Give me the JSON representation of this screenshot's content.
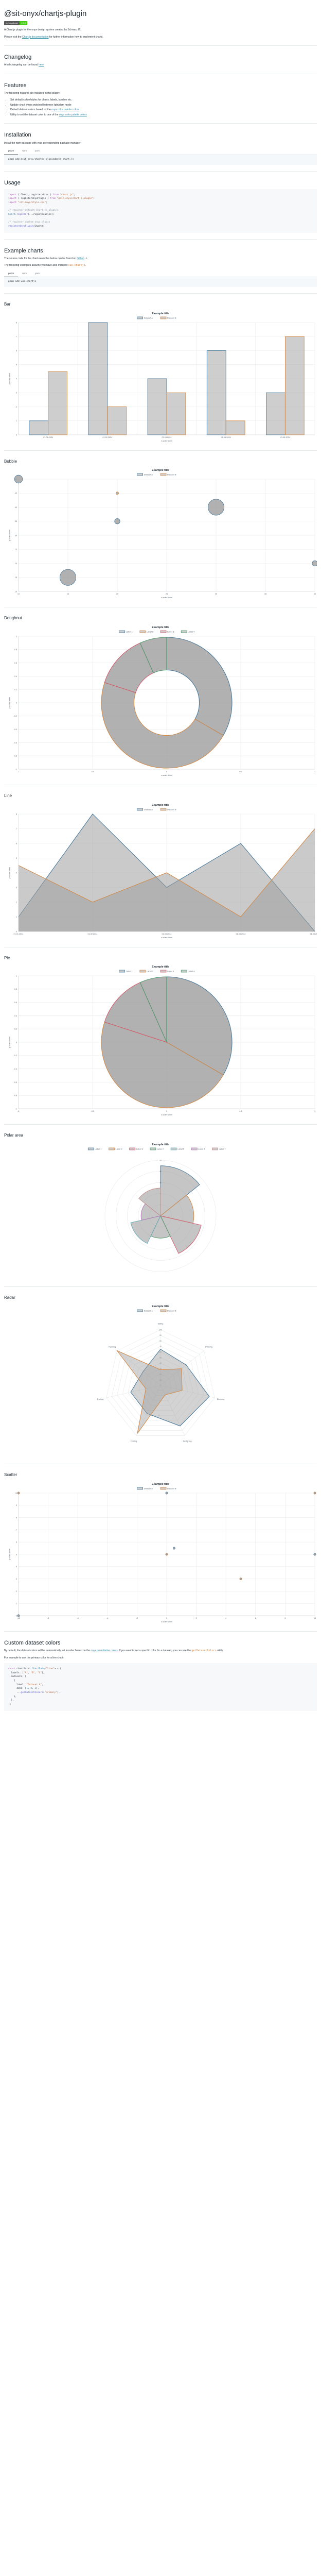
{
  "title": "@sit-onyx/chartjs-plugin",
  "badge": {
    "label": "npm package",
    "version": "1.0.0"
  },
  "intro": {
    "text": "A Chart.js plugin for the onyx design system created by Schwarz IT.",
    "pre": "Please visit the ",
    "link": "Chart.js documentation",
    "post": " for further information how to implement charts."
  },
  "changelog": {
    "heading": "Changelog",
    "pre": "A full changelog can be found ",
    "link": "here"
  },
  "features": {
    "heading": "Features",
    "intro": "The following features are included in this plugin:",
    "items": [
      {
        "text": "Set default colors/styles for charts, labels, borders etc."
      },
      {
        "text": "Update chart when switched between light/dark mode"
      },
      {
        "text": "Default dataset colors based on the ",
        "link": "onyx color palette colors"
      },
      {
        "text": "Utility to set the dataset color to one of the ",
        "link": "onyx color palette colors"
      }
    ]
  },
  "installation": {
    "heading": "Installation",
    "text": "Install the npm package with your corresponding package manager:",
    "tabs": [
      "pnpm",
      "npm",
      "yarn"
    ],
    "command": "pnpm add @sit-onyx/chartjs-plugin@beta chart.js"
  },
  "usage": {
    "heading": "Usage",
    "lines": [
      [
        {
          "c": "kw",
          "t": "import"
        },
        {
          "c": "",
          "t": " { Chart, registerables } "
        },
        {
          "c": "kw",
          "t": "from"
        },
        {
          "c": "str",
          "t": " \"chart.js\""
        },
        {
          "c": "",
          "t": ";"
        }
      ],
      [
        {
          "c": "kw",
          "t": "import"
        },
        {
          "c": "",
          "t": " { registerOnyxPlugin } "
        },
        {
          "c": "kw",
          "t": "from"
        },
        {
          "c": "str",
          "t": " \"@sit-onyx/chartjs-plugin\""
        },
        {
          "c": "",
          "t": ";"
        }
      ],
      [
        {
          "c": "kw",
          "t": "import"
        },
        {
          "c": "str",
          "t": " \"sit-onyx/style.css\""
        },
        {
          "c": "",
          "t": ";"
        }
      ],
      [],
      [
        {
          "c": "cm",
          "t": "// register default Chart.js plugins"
        }
      ],
      [
        {
          "c": "var",
          "t": "Chart"
        },
        {
          "c": "",
          "t": "."
        },
        {
          "c": "fn",
          "t": "register"
        },
        {
          "c": "",
          "t": "(...registerables);"
        }
      ],
      [],
      [
        {
          "c": "cm",
          "t": "// register custom onyx plugin"
        }
      ],
      [
        {
          "c": "fn",
          "t": "registerOnyxPlugin"
        },
        {
          "c": "",
          "t": "(Chart);"
        }
      ]
    ]
  },
  "examples": {
    "heading": "Example charts",
    "text1_pre": "The source code for the chart examples below can be found on ",
    "text1_link": "Github",
    "text1_post": " ↗.",
    "text2_pre": "The following examples assume you have also installed ",
    "text2_code": "vue-chartjs",
    "text2_post": ".",
    "tabs": [
      "pnpm",
      "npm",
      "yarn"
    ],
    "command": "pnpm add vue-chartjs"
  },
  "colors": {
    "onyx1": "#4a7a9c",
    "onyx2": "#d28a48",
    "onyx3": "#d35a6e",
    "onyx4": "#4f9a6e",
    "onyx5": "#6aaab8",
    "onyx6": "#b27ab8",
    "onyx7": "#c49090",
    "gray_fill": "#9e9e9e"
  },
  "chart_data": [
    {
      "id": "bar",
      "section": "Bar",
      "type": "bar",
      "title": "Example title",
      "xlabel": "x-scale label",
      "ylabel": "y-scale label",
      "categories": [
        "01.01.2024",
        "01.02.2024",
        "01.03.2024",
        "01.04.2024",
        "01.05.2024"
      ],
      "series": [
        {
          "name": "Dataset A",
          "values": [
            1,
            8,
            4,
            6,
            3
          ]
        },
        {
          "name": "Dataset B",
          "values": [
            4.5,
            2,
            3,
            1,
            7
          ]
        }
      ],
      "ylim": [
        0,
        8
      ],
      "yticks": [
        0,
        1,
        2,
        3,
        4,
        5,
        6,
        7,
        8
      ],
      "legend": "top",
      "grid": true
    },
    {
      "id": "bubble",
      "section": "Bubble",
      "type": "bubble",
      "title": "Example title",
      "xlabel": "x-scale label",
      "ylabel": "y-scale label",
      "series": [
        {
          "name": "Dataset A",
          "points": [
            {
              "x": 10,
              "y": 50,
              "r": 3
            },
            {
              "x": 15,
              "y": 15,
              "r": 6
            },
            {
              "x": 20,
              "y": 35,
              "r": 2
            },
            {
              "x": 30,
              "y": 40,
              "r": 6
            },
            {
              "x": 40,
              "y": 20,
              "r": 2
            }
          ]
        },
        {
          "name": "Dataset B",
          "points": [
            {
              "x": 20,
              "y": 45,
              "r": 1
            }
          ]
        }
      ],
      "xlim": [
        10,
        40
      ],
      "xticks": [
        10,
        15,
        20,
        25,
        30,
        35,
        40
      ],
      "ylim": [
        10,
        50
      ],
      "yticks": [
        10,
        15,
        20,
        25,
        30,
        35,
        40,
        45,
        50
      ],
      "legend": "top",
      "grid": true
    },
    {
      "id": "doughnut",
      "section": "Doughnut",
      "type": "doughnut",
      "title": "Example title",
      "xlabel": "x-scale label",
      "ylabel": "y-scale label",
      "labels": [
        "Label 1",
        "Label 2",
        "Label 3",
        "Label 4"
      ],
      "values": [
        25,
        35,
        10,
        5
      ],
      "xlim": [
        -1,
        1
      ],
      "xticks": [
        -1,
        -0.5,
        0,
        0.5,
        1
      ],
      "ylim": [
        -1,
        1
      ],
      "yticks": [
        -1,
        -0.8,
        -0.6,
        -0.4,
        -0.2,
        0,
        0.2,
        0.4,
        0.6,
        0.8,
        1
      ],
      "legend": "top"
    },
    {
      "id": "line",
      "section": "Line",
      "type": "area",
      "title": "Example title",
      "xlabel": "x-scale label",
      "ylabel": "y-scale label",
      "categories": [
        "01.01.2024",
        "01.02.2024",
        "01.03.2024",
        "01.04.2024",
        "01.05.2024"
      ],
      "series": [
        {
          "name": "Dataset A",
          "values": [
            1,
            8,
            3,
            6,
            0
          ]
        },
        {
          "name": "Dataset B",
          "values": [
            4.5,
            2,
            4,
            1,
            7
          ]
        }
      ],
      "ylim": [
        0,
        8
      ],
      "yticks": [
        0,
        1,
        2,
        3,
        4,
        5,
        6,
        7,
        8
      ],
      "legend": "top",
      "grid": true
    },
    {
      "id": "pie",
      "section": "Pie",
      "type": "pie",
      "title": "Example title",
      "xlabel": "x-scale label",
      "ylabel": "y-scale label",
      "labels": [
        "Label 1",
        "Label 2",
        "Label 3",
        "Label 4"
      ],
      "values": [
        25,
        35,
        10,
        5
      ],
      "xlim": [
        -1,
        1
      ],
      "xticks": [
        -1,
        -0.5,
        0,
        0.5,
        1
      ],
      "ylim": [
        -1,
        1
      ],
      "yticks": [
        -1,
        -0.8,
        -0.6,
        -0.4,
        -0.2,
        0,
        0.2,
        0.4,
        0.6,
        0.8,
        1
      ],
      "legend": "top"
    },
    {
      "id": "polar",
      "section": "Polar area",
      "type": "polar",
      "title": "Example title",
      "labels": [
        "Label 1",
        "Label 2",
        "Label 3",
        "Label 4",
        "Label 5",
        "Label 6",
        "Label 7"
      ],
      "values": [
        18,
        12,
        15,
        8,
        11,
        7,
        10
      ],
      "rmax": 20,
      "rticks": [
        0,
        4,
        8,
        12,
        16,
        20
      ],
      "legend": "top"
    },
    {
      "id": "radar",
      "section": "Radar",
      "type": "radar",
      "title": "Example title",
      "labels": [
        "Eating",
        "Drinking",
        "Sleeping",
        "Designing",
        "Coding",
        "Cycling",
        "Running"
      ],
      "series": [
        {
          "name": "Dataset A",
          "values": [
            65,
            59,
            90,
            81,
            56,
            55,
            40
          ]
        },
        {
          "name": "Dataset B",
          "values": [
            28,
            48,
            40,
            19,
            96,
            27,
            100
          ]
        }
      ],
      "rmax": 100,
      "rticks": [
        0,
        10,
        20,
        30,
        40,
        50,
        60,
        70,
        80,
        90,
        100
      ],
      "legend": "top"
    },
    {
      "id": "scatter",
      "section": "Scatter",
      "type": "scatter",
      "title": "Example title",
      "xlabel": "x-scale label",
      "ylabel": "y-scale label",
      "series": [
        {
          "name": "Dataset A",
          "points": [
            {
              "x": -10,
              "y": 0
            },
            {
              "x": 0,
              "y": 10
            },
            {
              "x": 10,
              "y": 5
            },
            {
              "x": 0.5,
              "y": 5.5
            }
          ]
        },
        {
          "name": "Dataset B",
          "points": [
            {
              "x": -10,
              "y": 10
            },
            {
              "x": 10,
              "y": 10
            },
            {
              "x": 0,
              "y": 5
            },
            {
              "x": 5,
              "y": 3
            }
          ]
        }
      ],
      "xlim": [
        -10,
        10
      ],
      "xticks": [
        -10,
        -8,
        -6,
        -4,
        -2,
        0,
        2,
        4,
        6,
        8,
        10
      ],
      "ylim": [
        0,
        10
      ],
      "yticks": [
        0,
        1,
        2,
        3,
        4,
        5,
        6,
        7,
        8,
        9,
        10
      ],
      "legend": "top",
      "grid": true
    }
  ],
  "custom": {
    "heading": "Custom dataset colors",
    "text1_pre": "By default, the dataset colors will be automatically set in order based on the ",
    "text1_link": "onyx quantitative colors",
    "text1_mid": ". If you want to set a specific color for a dataset, you can use the ",
    "text1_code": "getDatasetColors",
    "text1_post": " utility.",
    "text2": "For example to use the primary color for a line chart:",
    "lines": [
      [
        {
          "c": "kw",
          "t": "const"
        },
        {
          "c": "",
          "t": " chartData: "
        },
        {
          "c": "var",
          "t": "ChartData"
        },
        {
          "c": "",
          "t": "<"
        },
        {
          "c": "str",
          "t": "\"line\""
        },
        {
          "c": "",
          "t": "> = {"
        }
      ],
      [
        {
          "c": "",
          "t": "  labels: ["
        },
        {
          "c": "str",
          "t": "\"A\""
        },
        {
          "c": "",
          "t": ", "
        },
        {
          "c": "str",
          "t": "\"B\""
        },
        {
          "c": "",
          "t": ", "
        },
        {
          "c": "str",
          "t": "\"C\""
        },
        {
          "c": "",
          "t": "],"
        }
      ],
      [
        {
          "c": "",
          "t": "  datasets: ["
        }
      ],
      [
        {
          "c": "",
          "t": "    {"
        }
      ],
      [
        {
          "c": "",
          "t": "      label: "
        },
        {
          "c": "str",
          "t": "\"Dataset A\""
        },
        {
          "c": "",
          "t": ","
        }
      ],
      [
        {
          "c": "",
          "t": "      data: ["
        },
        {
          "c": "num",
          "t": "1"
        },
        {
          "c": "",
          "t": ", "
        },
        {
          "c": "num",
          "t": "2"
        },
        {
          "c": "",
          "t": ", "
        },
        {
          "c": "num",
          "t": "3"
        },
        {
          "c": "",
          "t": "],"
        }
      ],
      [
        {
          "c": "",
          "t": "      ..."
        },
        {
          "c": "fn",
          "t": "getDatasetColors"
        },
        {
          "c": "",
          "t": "("
        },
        {
          "c": "str",
          "t": "\"primary\""
        },
        {
          "c": "",
          "t": "),"
        }
      ],
      [
        {
          "c": "",
          "t": "    },"
        }
      ],
      [
        {
          "c": "",
          "t": "  ],"
        }
      ],
      [
        {
          "c": "",
          "t": "};"
        }
      ]
    ]
  }
}
